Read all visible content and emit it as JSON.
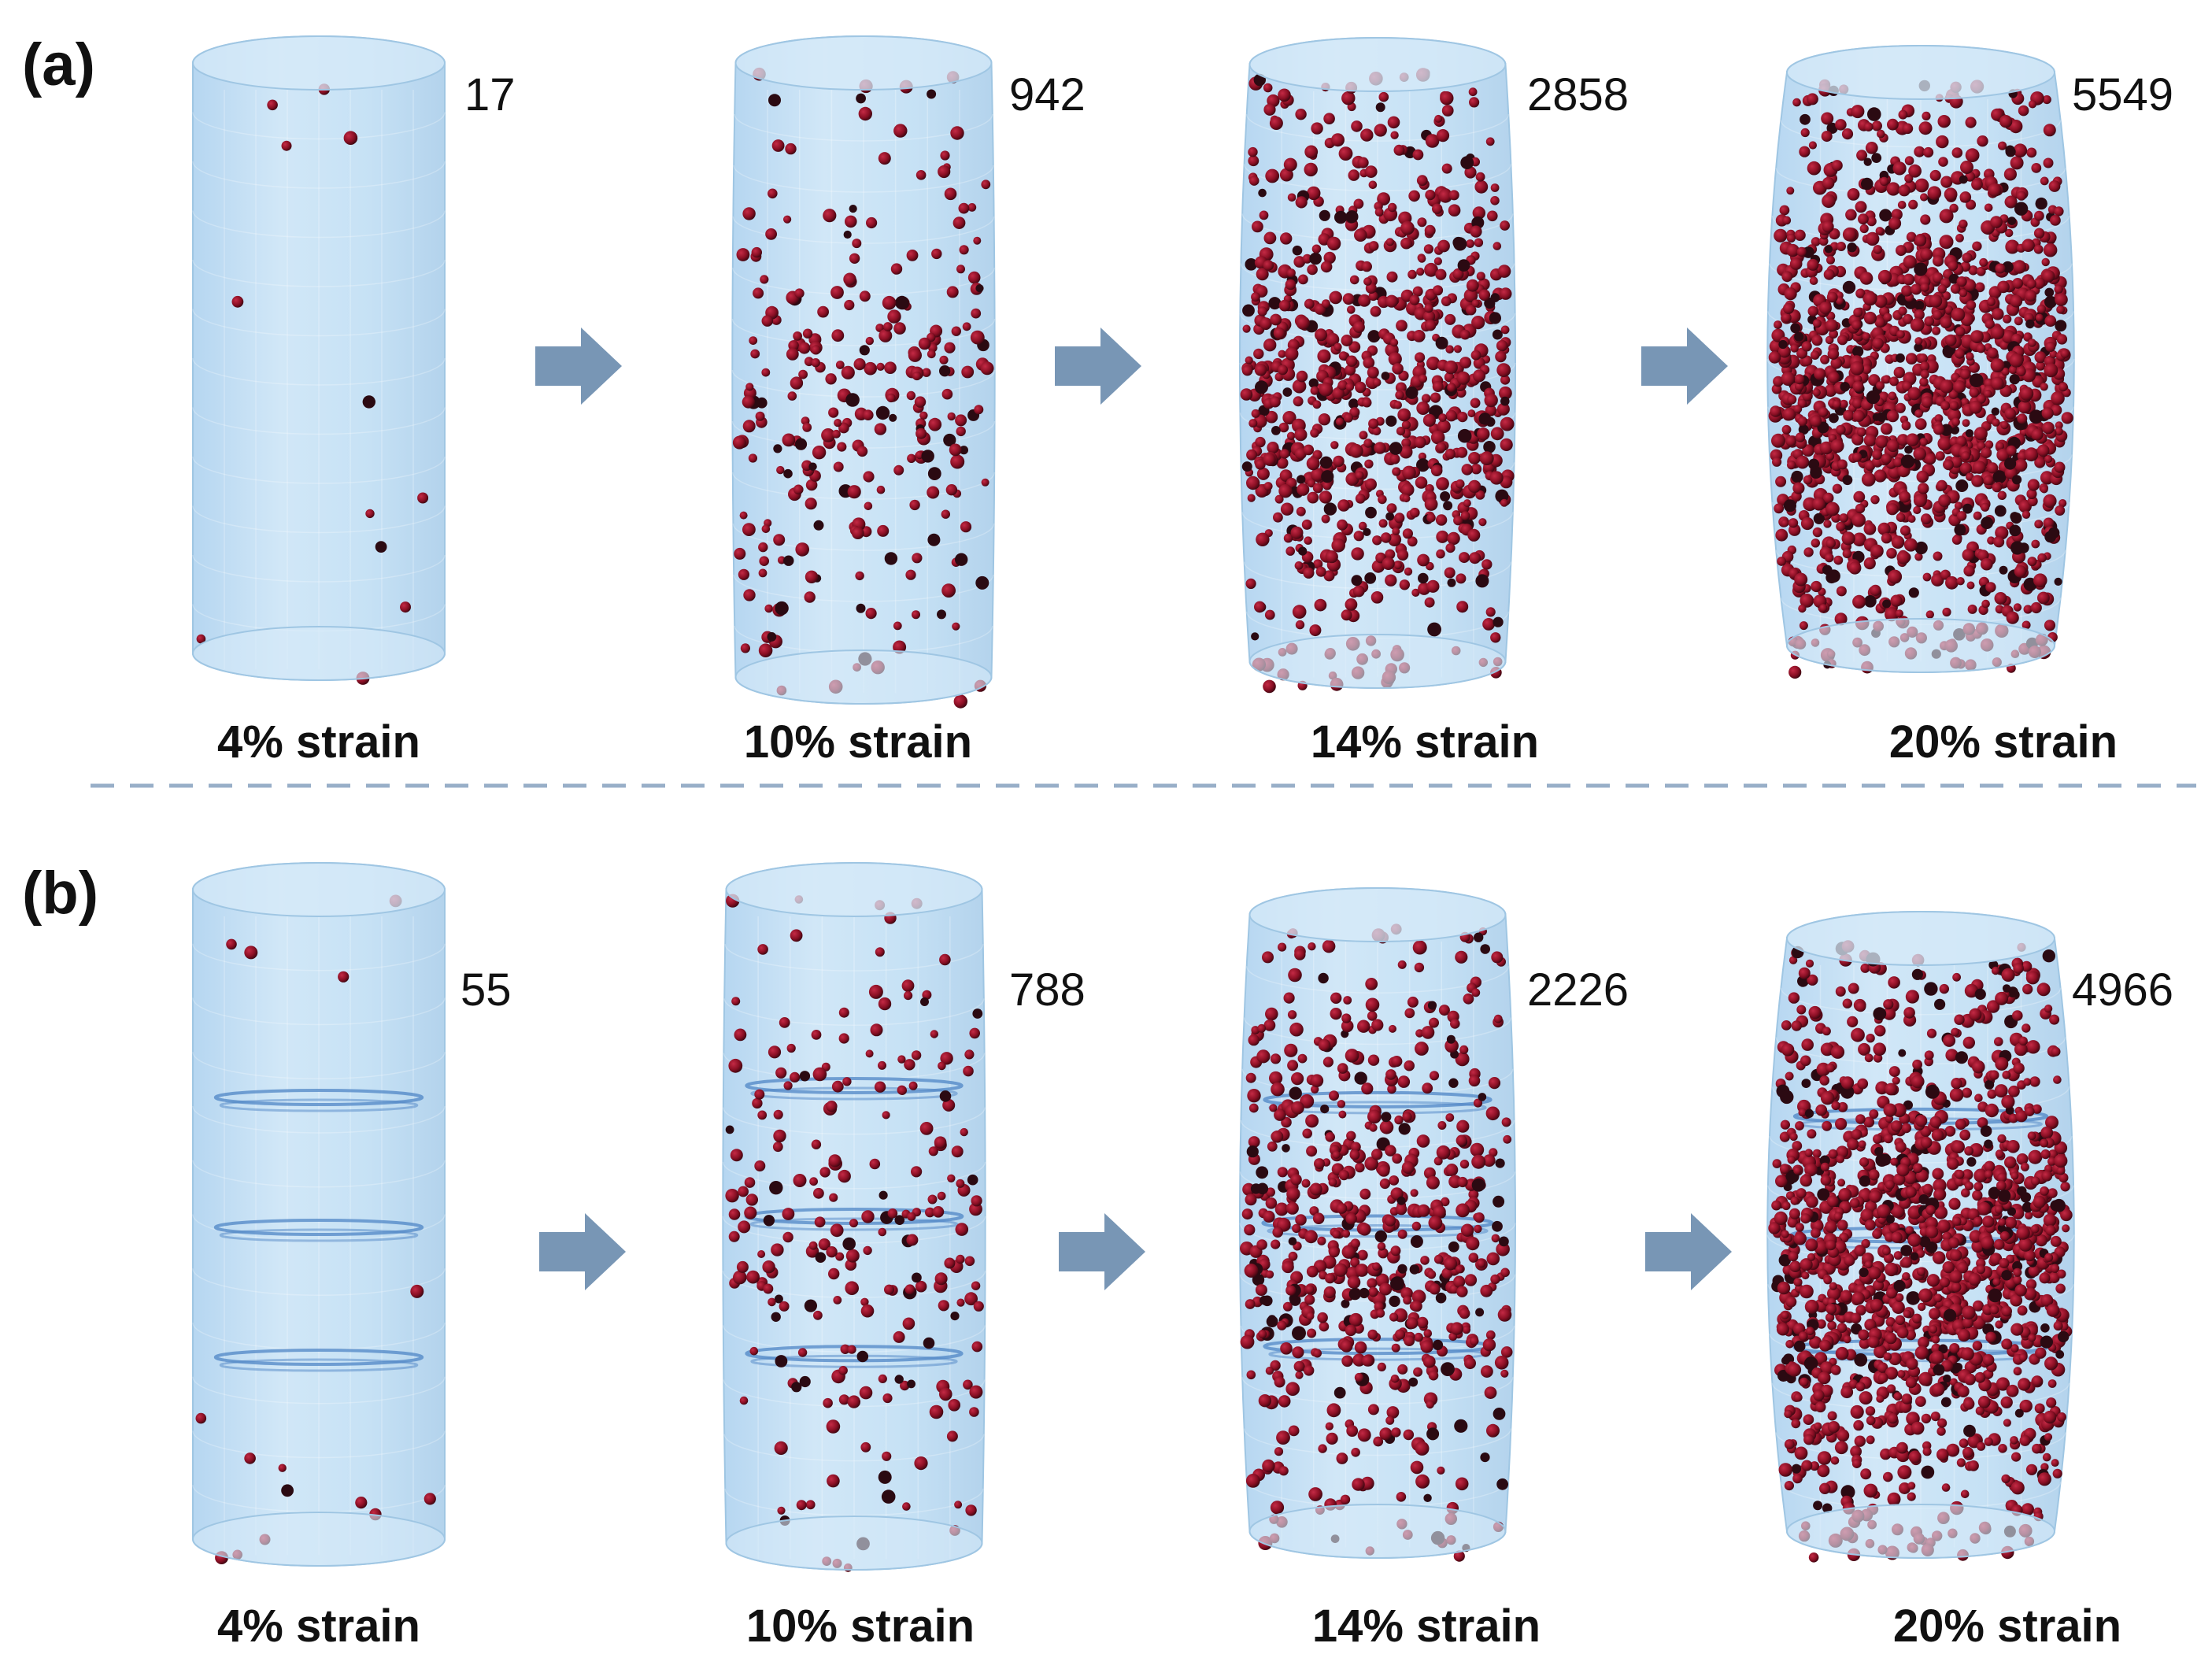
{
  "colors": {
    "cylinder_fill": "#bcdcf3",
    "cylinder_edge": "#9fc6e3",
    "cap_fill": "#d6eaf8",
    "particle": "#8a0f24",
    "particle_dark": "#2b0a12",
    "interface": "#4f86c6",
    "arrow": "#7896b5",
    "divider": "#98afc8"
  },
  "panels": [
    {
      "label": "(a)",
      "stages": [
        {
          "count": "17",
          "strain": "4% strain",
          "bulge": 0.0,
          "particles": 17,
          "interfaces": []
        },
        {
          "count": "942",
          "strain": "10% strain",
          "bulge": 0.1,
          "particles": 942,
          "interfaces": []
        },
        {
          "count": "2858",
          "strain": "14% strain",
          "bulge": 0.3,
          "particles": 2858,
          "interfaces": []
        },
        {
          "count": "5549",
          "strain": "20% strain",
          "bulge": 0.6,
          "particles": 5549,
          "interfaces": []
        }
      ]
    },
    {
      "label": "(b)",
      "stages": [
        {
          "count": "55",
          "strain": "4% strain",
          "bulge": 0.0,
          "particles": 55,
          "interfaces": [
            0.32,
            0.52,
            0.72
          ]
        },
        {
          "count": "788",
          "strain": "10% strain",
          "bulge": 0.1,
          "particles": 788,
          "interfaces": [
            0.3,
            0.5,
            0.71
          ]
        },
        {
          "count": "2226",
          "strain": "14% strain",
          "bulge": 0.3,
          "particles": 2226,
          "interfaces": [
            0.3,
            0.5,
            0.7
          ]
        },
        {
          "count": "4966",
          "strain": "20% strain",
          "bulge": 0.6,
          "particles": 4966,
          "interfaces": [
            0.3,
            0.5,
            0.69
          ]
        }
      ]
    }
  ],
  "arrow_icon": "right-arrow-icon",
  "divider_style": "dashed"
}
